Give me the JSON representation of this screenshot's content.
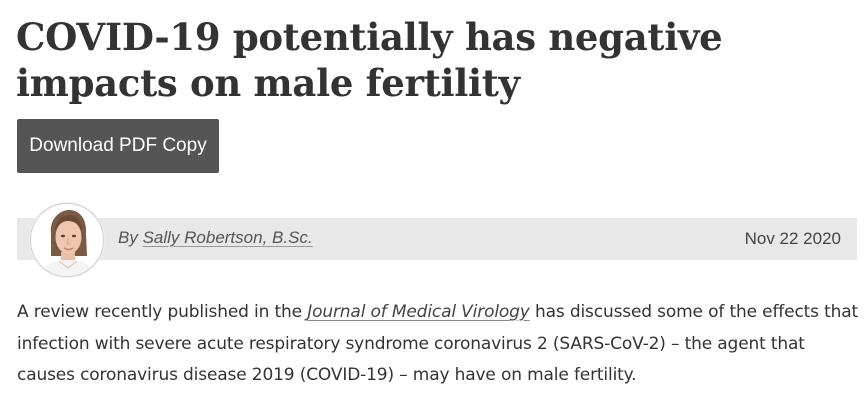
{
  "article": {
    "headline": "COVID-19 potentially has negative impacts on male fertility",
    "download_button_label": "Download PDF Copy",
    "byline_prefix": "By ",
    "author_name": "Sally Robertson, B.Sc.",
    "date": "Nov 22 2020",
    "body": {
      "before_link": "A review recently published in the ",
      "journal_link": "Journal of Medical Virology",
      "after_link": " has discussed some of the effects that infection with severe acute respiratory syndrome coronavirus 2 (SARS-CoV-2) – the agent that causes coronavirus disease 2019 (COVID-19) – may have on male fertility."
    }
  },
  "colors": {
    "button_bg": "#555555",
    "byline_bar_bg": "#e8e8e8",
    "text": "#333333"
  },
  "icons": {
    "avatar": "author-avatar-photo"
  }
}
